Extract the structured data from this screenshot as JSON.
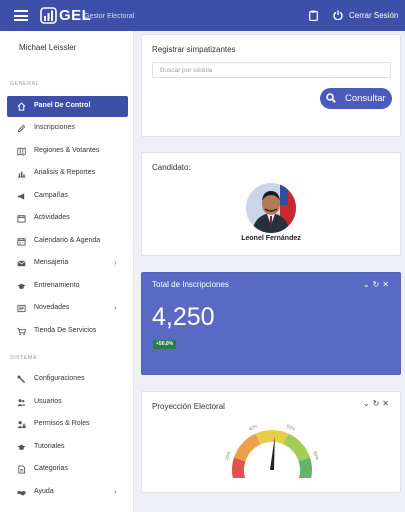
{
  "topbar": {
    "logo_text": "GEL",
    "logo_subtitle": "Gestor Electoral",
    "logout_label": "Cerrar Sesión"
  },
  "sidebar": {
    "user_name": "Michael Leissler",
    "sections": [
      {
        "title": "GENERAL",
        "items": [
          {
            "label": "Panel De Control",
            "icon": "home-icon",
            "active": true
          },
          {
            "label": "Inscripciones",
            "icon": "pencil-icon"
          },
          {
            "label": "Regiones & Votantes",
            "icon": "map-icon"
          },
          {
            "label": "Analisis & Reportes",
            "icon": "bar-chart-icon"
          },
          {
            "label": "Campañas",
            "icon": "megaphone-icon"
          },
          {
            "label": "Actividades",
            "icon": "calendar-icon"
          },
          {
            "label": "Calendario & Agenda",
            "icon": "calendar-icon"
          },
          {
            "label": "Mensajeria",
            "icon": "envelope-icon",
            "submenu": true
          },
          {
            "label": "Entrenamiento",
            "icon": "graduation-cap-icon"
          },
          {
            "label": "Novedades",
            "icon": "newspaper-icon",
            "submenu": true
          },
          {
            "label": "Tienda De Servicios",
            "icon": "cart-icon"
          }
        ]
      },
      {
        "title": "SISTEMA",
        "items": [
          {
            "label": "Configuraciones",
            "icon": "wrench-icon"
          },
          {
            "label": "Usuarios",
            "icon": "users-icon"
          },
          {
            "label": "Permisos & Roles",
            "icon": "user-lock-icon"
          },
          {
            "label": "Tutoriales",
            "icon": "graduation-cap-icon"
          },
          {
            "label": "Categorias",
            "icon": "document-icon"
          },
          {
            "label": "Ayuda",
            "icon": "handshake-icon",
            "submenu": true
          }
        ]
      }
    ]
  },
  "register_card": {
    "title": "Registrar simpatizantes",
    "search_placeholder": "Buscar por cédula",
    "button_label": "Consultar"
  },
  "candidate_card": {
    "title": "Candidato:",
    "candidate_name": "Leonel Fernández"
  },
  "inscriptions_card": {
    "title": "Total de Inscripciones",
    "total": "4,250",
    "change_badge": "+50,0%"
  },
  "projection_card": {
    "title": "Proyección Electoral",
    "gauge": {
      "labels": [
        "0%",
        "20%",
        "40%",
        "60%",
        "80%",
        "100%"
      ],
      "value_fraction": 0.52
    }
  },
  "colors": {
    "primary": "#3d4fa8",
    "card_blue": "#5a6ac4",
    "badge_green": "#2a7b4d",
    "gauge_red": "#e05252",
    "gauge_orange": "#f0a04b",
    "gauge_yellow": "#e9cc4b",
    "gauge_lightgreen": "#a3cd57",
    "gauge_green": "#62b56a"
  }
}
